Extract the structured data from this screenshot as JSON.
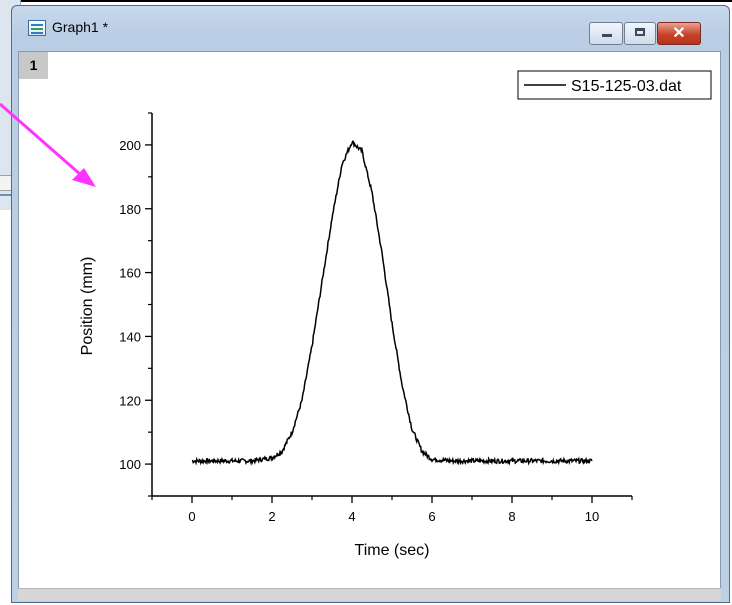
{
  "window": {
    "title": "Graph1 *",
    "layer_index": "1"
  },
  "colors": {
    "annotation_arrow": "#ff33ff",
    "titlebar": "#bcd0e6",
    "close_button": "#c7432b"
  },
  "icons": {
    "app": "graph-window-icon",
    "minimize": "minimize-icon",
    "maximize": "maximize-icon",
    "close": "close-icon"
  },
  "chart_data": {
    "type": "line",
    "title": "",
    "xlabel": "Time (sec)",
    "ylabel": "Position (mm)",
    "xlim": [
      -1,
      11
    ],
    "ylim": [
      90,
      210
    ],
    "x_ticks": [
      0,
      2,
      4,
      6,
      8,
      10
    ],
    "y_ticks": [
      100,
      120,
      140,
      160,
      180,
      200
    ],
    "legend_position": "top-right",
    "grid": false,
    "series": [
      {
        "name": "S15-125-03.dat",
        "color": "#000000",
        "x": [
          0,
          0.5,
          1.0,
          1.5,
          2.0,
          2.25,
          2.5,
          2.75,
          3.0,
          3.25,
          3.5,
          3.75,
          4.0,
          4.25,
          4.5,
          4.75,
          5.0,
          5.25,
          5.5,
          5.75,
          6.0,
          6.5,
          7.0,
          7.5,
          8.0,
          8.5,
          9.0,
          9.5,
          10.0
        ],
        "y": [
          101,
          101,
          101,
          101,
          102,
          104,
          110,
          120,
          137,
          157,
          177,
          194,
          201,
          198,
          185,
          166,
          144,
          125,
          111,
          104,
          101.5,
          101,
          101,
          101,
          101,
          101,
          101,
          101,
          101
        ]
      }
    ]
  }
}
